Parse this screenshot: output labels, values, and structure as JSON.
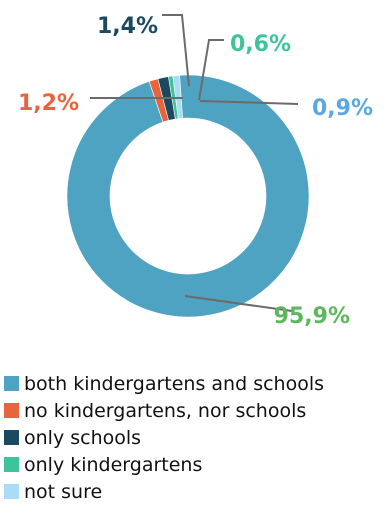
{
  "chart_data": {
    "type": "pie",
    "donut": true,
    "slices": [
      {
        "label": "both kindergartens and schools",
        "value": 95.9,
        "value_label": "95,9%",
        "color": "#4fa3c2",
        "label_color": "#5cb85c"
      },
      {
        "label": "no kindergartens, nor schools",
        "value": 1.2,
        "value_label": "1,2%",
        "color": "#e8643c",
        "label_color": "#e8643c"
      },
      {
        "label": "only schools",
        "value": 1.4,
        "value_label": "1,4%",
        "color": "#1a4a60",
        "label_color": "#1a4a60"
      },
      {
        "label": "only kindergartens",
        "value": 0.6,
        "value_label": "0,6%",
        "color": "#3ec49a",
        "label_color": "#3ec49a"
      },
      {
        "label": "not sure",
        "value": 0.9,
        "value_label": "0,9%",
        "color": "#a8dcf8",
        "label_color": "#5aa8e0"
      }
    ],
    "legend_position": "bottom-left"
  }
}
